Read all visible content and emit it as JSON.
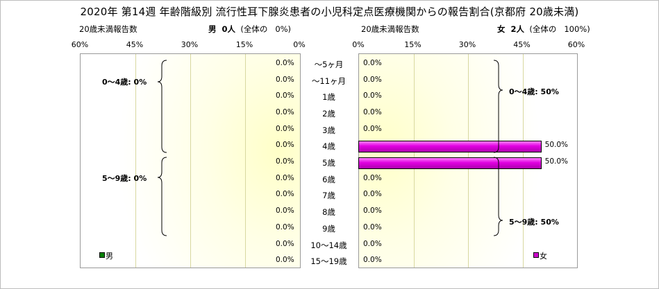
{
  "title": "2020年 第14週 年齢階級別 流行性耳下腺炎患者の小児科定点医療機関からの報告割合(京都府 20歳未満)",
  "left_panel": {
    "axis_title": "20歳未満報告数",
    "sex_label": "男",
    "count_text": "0人",
    "share_text": "(全体の",
    "share_value": "0%)",
    "legend": "男",
    "legend_color": "#008000",
    "groups": [
      {
        "label": "0～4歳: 0%"
      },
      {
        "label": "5～9歳: 0%"
      }
    ]
  },
  "right_panel": {
    "axis_title": "20歳未満報告数",
    "sex_label": "女",
    "count_text": "2人",
    "share_text": "(全体の",
    "share_value": "100%)",
    "legend": "女",
    "legend_color": "#cc00cc",
    "groups": [
      {
        "label": "0～4歳: 50%"
      },
      {
        "label": "5～9歳: 50%"
      }
    ]
  },
  "colors": {
    "female_bar": "#e000e0",
    "male_bar": "#008000",
    "plot_fill": "#ffffcc"
  },
  "chart_data": {
    "type": "bar",
    "orientation": "horizontal-population-pyramid",
    "categories": [
      "～5ヶ月",
      "～11ヶ月",
      "1歳",
      "2歳",
      "3歳",
      "4歳",
      "5歳",
      "6歳",
      "7歳",
      "8歳",
      "9歳",
      "10～14歳",
      "15～19歳"
    ],
    "xlim": [
      0,
      60
    ],
    "ticks": [
      "60%",
      "45%",
      "30%",
      "15%",
      "0%"
    ],
    "ticks_right": [
      "0%",
      "15%",
      "30%",
      "45%",
      "60%"
    ],
    "series": [
      {
        "name": "男",
        "values": [
          0,
          0,
          0,
          0,
          0,
          0,
          0,
          0,
          0,
          0,
          0,
          0,
          0
        ],
        "labels": [
          "0.0%",
          "0.0%",
          "0.0%",
          "0.0%",
          "0.0%",
          "0.0%",
          "0.0%",
          "0.0%",
          "0.0%",
          "0.0%",
          "0.0%",
          "0.0%",
          "0.0%"
        ]
      },
      {
        "name": "女",
        "values": [
          0,
          0,
          0,
          0,
          0,
          50,
          50,
          0,
          0,
          0,
          0,
          0,
          0
        ],
        "labels": [
          "0.0%",
          "0.0%",
          "0.0%",
          "0.0%",
          "0.0%",
          "50.0%",
          "50.0%",
          "0.0%",
          "0.0%",
          "0.0%",
          "0.0%",
          "0.0%",
          "0.0%"
        ]
      }
    ]
  }
}
